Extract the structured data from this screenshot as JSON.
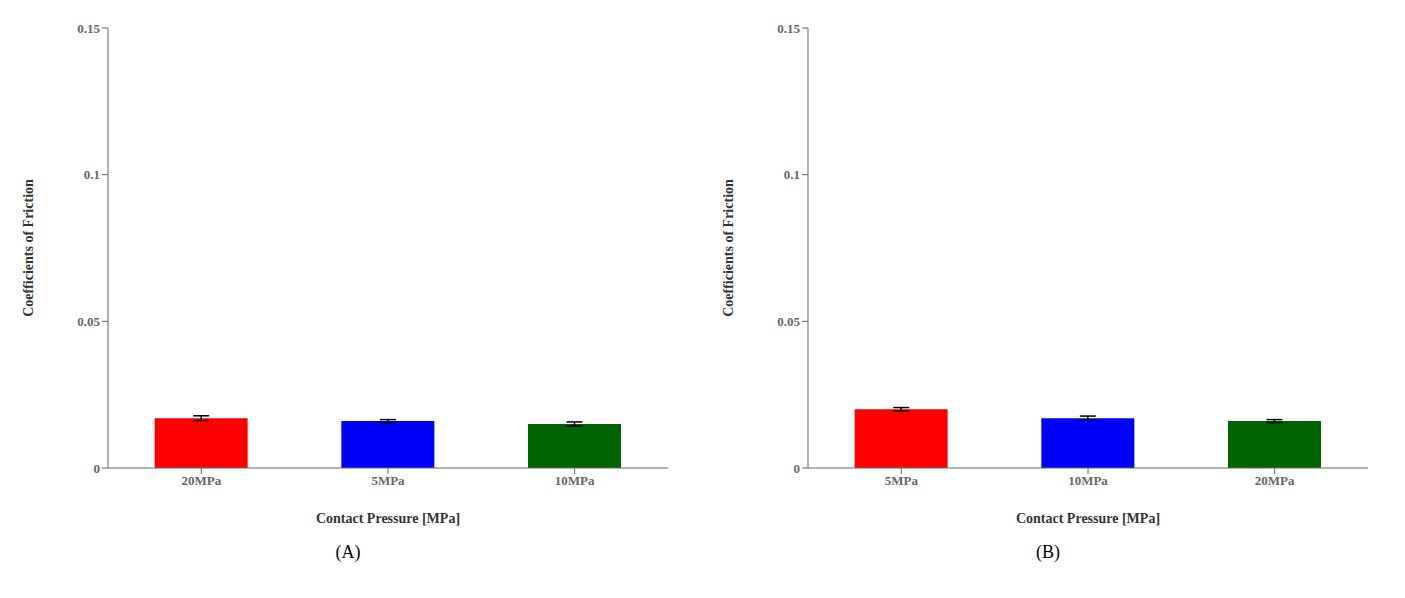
{
  "chart_data": [
    {
      "type": "bar",
      "categories": [
        "20MPa",
        "5MPa",
        "10MPa"
      ],
      "values": [
        0.017,
        0.016,
        0.015
      ],
      "errors": [
        0.0008,
        0.0005,
        0.0007
      ],
      "colors": [
        "#ff0000",
        "#0000ff",
        "#006400"
      ],
      "xlabel": "Contact Pressure [MPa]",
      "ylabel": "Coefficients of Friction",
      "subtitle": "(A)",
      "ylim": [
        0,
        0.15
      ],
      "yticks": [
        0,
        0.05,
        0.1,
        0.15
      ],
      "grid": false
    },
    {
      "type": "bar",
      "categories": [
        "5MPa",
        "10MPa",
        "20MPa"
      ],
      "values": [
        0.02,
        0.017,
        0.016
      ],
      "errors": [
        0.0006,
        0.0007,
        0.0005
      ],
      "colors": [
        "#ff0000",
        "#0000ff",
        "#006400"
      ],
      "xlabel": "Contact Pressure [MPa]",
      "ylabel": "Coefficients of Friction",
      "subtitle": "(B)",
      "ylim": [
        0,
        0.15
      ],
      "yticks": [
        0,
        0.05,
        0.1,
        0.15
      ],
      "grid": false
    }
  ]
}
